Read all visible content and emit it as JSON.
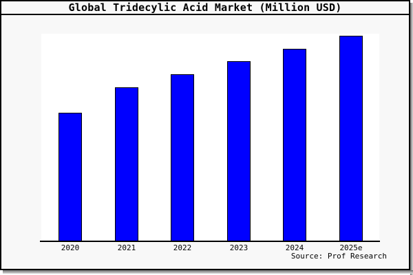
{
  "title": "Global Tridecylic Acid Market (Million USD)",
  "source": "Source: Prof Research",
  "colors": {
    "bar_fill": "#0000ff",
    "bar_border": "#000000",
    "figure_background": "#f8f8f8",
    "plot_background": "#ffffff",
    "frame_border": "#000000"
  },
  "chart_data": {
    "type": "bar",
    "title": "Global Tridecylic Acid Market (Million USD)",
    "categories": [
      "2020",
      "2021",
      "2022",
      "2023",
      "2024",
      "2025e"
    ],
    "values": [
      62.8,
      75.1,
      81.4,
      87.7,
      93.7,
      100
    ],
    "values_unit": "relative height, 2025e = 100 (y-axis unlabeled in chart)",
    "xlabel": "",
    "ylabel": "",
    "grid": false,
    "legend": false,
    "y_axis_ticks_visible": false,
    "source_annotation": "Source: Prof Research"
  }
}
